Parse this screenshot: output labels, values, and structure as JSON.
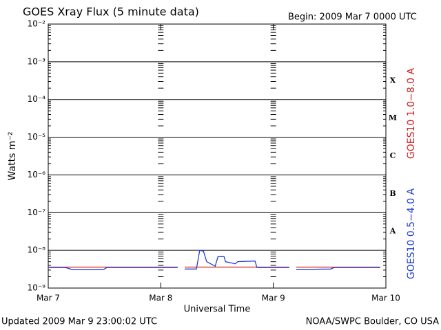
{
  "chart_data": {
    "type": "line",
    "title": "GOES Xray Flux (5 minute data)",
    "subtitle": "Begin:  2009 Mar 7 0000 UTC",
    "ylabel": "Watts m⁻²",
    "xlabel": "Universal Time",
    "footer_left": "Updated 2009 Mar  9 23:00:02 UTC",
    "footer_right": "NOAA/SWPC Boulder, CO USA",
    "yscale": "log",
    "grid": true,
    "ylim": [
      1e-09,
      0.01
    ],
    "yticks": [
      {
        "value": 1e-09,
        "label": "10⁻⁹"
      },
      {
        "value": 1e-08,
        "label": "10⁻⁸"
      },
      {
        "value": 1e-07,
        "label": "10⁻⁷"
      },
      {
        "value": 1e-06,
        "label": "10⁻⁶"
      },
      {
        "value": 1e-05,
        "label": "10⁻⁵"
      },
      {
        "value": 0.0001,
        "label": "10⁻⁴"
      },
      {
        "value": 0.001,
        "label": "10⁻³"
      },
      {
        "value": 0.01,
        "label": "10⁻²"
      }
    ],
    "xlim": [
      0,
      72
    ],
    "xticks": [
      {
        "value": 0,
        "label": "Mar 7"
      },
      {
        "value": 24,
        "label": "Mar 8"
      },
      {
        "value": 48,
        "label": "Mar 9"
      },
      {
        "value": 72,
        "label": "Mar 10"
      }
    ],
    "flare_classes": [
      {
        "label": "A",
        "value": 1e-08
      },
      {
        "label": "B",
        "value": 1e-07
      },
      {
        "label": "C",
        "value": 1e-06
      },
      {
        "label": "M",
        "value": 1e-05
      },
      {
        "label": "X",
        "value": 0.0001
      }
    ],
    "series": [
      {
        "name": "GOES10 1.0−8.0 A",
        "color": "#d42020",
        "x": [
          0,
          27.6,
          null,
          29.1,
          51.4,
          null,
          52.9,
          70.8
        ],
        "values": [
          3.6e-09,
          3.6e-09,
          null,
          3.6e-09,
          3.6e-09,
          null,
          3.6e-09,
          3.6e-09
        ]
      },
      {
        "name": "GOES10 0.5−4.0 A",
        "color": "#1f3fd0",
        "x": [
          0,
          3.7,
          5.1,
          11.8,
          12.5,
          27.6,
          null,
          29.1,
          31.6,
          32.3,
          33.1,
          33.8,
          35.6,
          36.2,
          37.5,
          37.8,
          39.9,
          40.4,
          44.1,
          44.5,
          51.4,
          null,
          52.9,
          60.2,
          61,
          70.8
        ],
        "values": [
          3.5e-09,
          3.5e-09,
          3.1e-09,
          3.1e-09,
          3.5e-09,
          3.5e-09,
          null,
          3.2e-09,
          3.2e-09,
          1e-08,
          9.5e-09,
          5e-09,
          3.8e-09,
          6.8e-09,
          6.8e-09,
          5e-09,
          4.4e-09,
          5e-09,
          5.2e-09,
          3.5e-09,
          3.5e-09,
          null,
          3.1e-09,
          3.2e-09,
          3.5e-09,
          3.5e-09
        ]
      }
    ]
  }
}
